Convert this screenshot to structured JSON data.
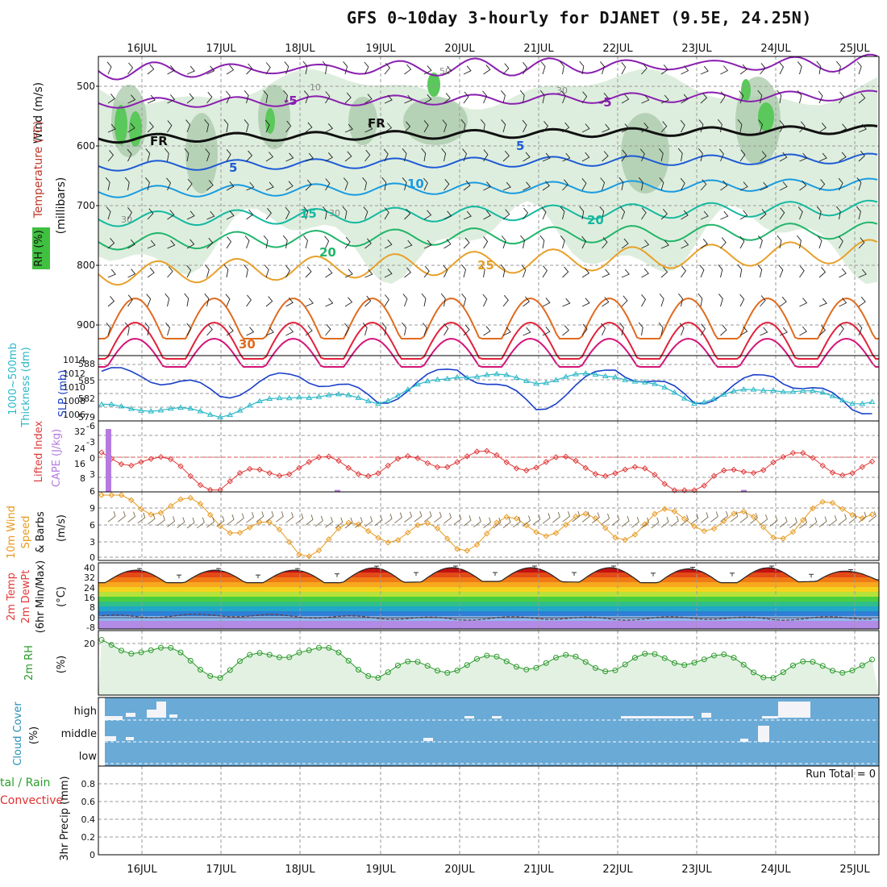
{
  "title": "GFS 0~10day 3-hourly for DJANET (9.5E, 24.25N)",
  "dates": [
    "16JUL",
    "17JUL",
    "18JUL",
    "19JUL",
    "20JUL",
    "21JUL",
    "22JUL",
    "23JUL",
    "24JUL",
    "25JUL"
  ],
  "run_total": "Run Total = 0",
  "colors": {
    "purple": "#8a1fb0",
    "fr": "#111111",
    "blue": "#1e5bd6",
    "lightblue": "#1a9be0",
    "teal": "#14b9a0",
    "green": "#22b56a",
    "orange": "#e7a02a",
    "darkorange": "#e06b1f",
    "red": "#e0223a",
    "magenta": "#d4157a",
    "rhfill": "#d6ead6",
    "rhdark": "#a8c8a8",
    "cloud": "#6aaad6",
    "slp": "#1a3fc9",
    "thick": "#2ab8c8",
    "li": "#e03a3a",
    "cape": "#b57be0",
    "wind": "#e79a20",
    "rh2m": "#2a9a2a"
  },
  "panels": {
    "upper": {
      "labels": [
        "Wind (m/s)",
        "Temperature (°C)",
        "RH (%)",
        "(millibars)"
      ],
      "yticks": [
        "500",
        "600",
        "700",
        "800",
        "900"
      ],
      "contour_labels": [
        "-5",
        "-5",
        "FR",
        "FR",
        "5",
        "5",
        "10",
        "15",
        "20",
        "20",
        "25",
        "30",
        "10",
        "30",
        "50",
        "30",
        "30"
      ]
    },
    "slp": {
      "labels": [
        "1000~500mb",
        "Thickness (dm)",
        "SLP (mb)"
      ],
      "left_ticks": [
        "588",
        "585",
        "582",
        "579"
      ],
      "right_ticks": [
        "1014",
        "1012",
        "1010",
        "1008",
        "1006"
      ]
    },
    "cape": {
      "labels": [
        "Lifted Index",
        "CAPE (J/kg)"
      ],
      "left_ticks": [
        "-6",
        "-3",
        "0",
        "3",
        "6"
      ],
      "right_ticks": [
        "32",
        "24",
        "16",
        "8"
      ]
    },
    "wind": {
      "labels": [
        "10m Wind",
        "Speed",
        "& Barbs",
        "(m/s)"
      ],
      "ticks": [
        "9",
        "6",
        "3",
        "0"
      ]
    },
    "temp": {
      "labels": [
        "2m Temp",
        "2m DewPt",
        "(6hr Min/Max)",
        "(°C)"
      ],
      "ticks": [
        "40",
        "32",
        "24",
        "16",
        "8",
        "0",
        "-8"
      ]
    },
    "rh": {
      "labels": [
        "2m RH",
        "(%)"
      ],
      "ticks": [
        "20"
      ]
    },
    "cloud": {
      "labels": [
        "Cloud Cover",
        "(%)"
      ],
      "levels": [
        "high",
        "middle",
        "low"
      ]
    },
    "precip": {
      "labels": [
        "tal / Rain",
        "Convective",
        "3hr Precip (mm)"
      ],
      "ticks": [
        "0.8",
        "0.6",
        "0.4",
        "0.2",
        "0"
      ]
    }
  },
  "chart_data": [
    {
      "type": "line",
      "title": "1000~500mb Thickness (dm) / SLP (mb)",
      "x": [
        "16JUL",
        "17JUL",
        "18JUL",
        "19JUL",
        "20JUL",
        "21JUL",
        "22JUL",
        "23JUL",
        "24JUL",
        "25JUL"
      ],
      "series": [
        {
          "name": "SLP (mb)",
          "values": [
            1012,
            1009,
            1012,
            1008,
            1013,
            1007,
            1013,
            1008,
            1012,
            1007
          ]
        },
        {
          "name": "1000~500mb Thickness (dm)",
          "values": [
            581,
            580,
            583,
            582,
            586,
            585,
            586,
            582,
            584,
            582
          ]
        }
      ],
      "ylim_left": [
        579,
        588
      ],
      "ylim_right": [
        1005,
        1014
      ]
    },
    {
      "type": "line",
      "title": "Lifted Index / CAPE (J/kg)",
      "x": [
        "16JUL",
        "17JUL",
        "18JUL",
        "19JUL",
        "20JUL",
        "21JUL",
        "22JUL",
        "23JUL",
        "24JUL",
        "25JUL"
      ],
      "series": [
        {
          "name": "Lifted Index",
          "values": [
            0,
            5,
            1,
            2,
            0,
            1,
            2,
            6,
            0,
            2
          ]
        },
        {
          "name": "CAPE (J/kg)",
          "values": [
            32,
            0,
            0,
            1,
            0,
            0,
            0,
            0,
            1,
            0
          ]
        }
      ],
      "ylim_left": [
        6,
        -6
      ],
      "ylim_right": [
        0,
        32
      ]
    },
    {
      "type": "line",
      "title": "10m Wind Speed (m/s)",
      "x": [
        "16JUL",
        "17JUL",
        "18JUL",
        "19JUL",
        "20JUL",
        "21JUL",
        "22JUL",
        "23JUL",
        "24JUL",
        "25JUL"
      ],
      "values": [
        10,
        7,
        2,
        5,
        3,
        6,
        5,
        7,
        5,
        9
      ],
      "ylim": [
        0,
        11
      ]
    },
    {
      "type": "area",
      "title": "2m Temp (°C)",
      "x": [
        "16JUL",
        "17JUL",
        "18JUL",
        "19JUL",
        "20JUL",
        "21JUL",
        "22JUL",
        "23JUL",
        "24JUL",
        "25JUL"
      ],
      "series": [
        {
          "name": "2m Temp max",
          "values": [
            38,
            38,
            38,
            40,
            40,
            40,
            40,
            39,
            40,
            37
          ]
        },
        {
          "name": "2m Temp min",
          "values": [
            28,
            28,
            28,
            28,
            29,
            29,
            28,
            28,
            28,
            30
          ]
        },
        {
          "name": "2m DewPt",
          "values": [
            1,
            2,
            1,
            0,
            -1,
            0,
            -1,
            0,
            -1,
            0
          ]
        }
      ],
      "ylim": [
        -10,
        42
      ]
    },
    {
      "type": "line",
      "title": "2m RH (%)",
      "x": [
        "16JUL",
        "17JUL",
        "18JUL",
        "19JUL",
        "20JUL",
        "21JUL",
        "22JUL",
        "23JUL",
        "24JUL",
        "25JUL"
      ],
      "values": [
        19,
        9,
        19,
        9,
        12,
        13,
        12,
        15,
        9,
        12
      ],
      "ylim": [
        0,
        25
      ]
    },
    {
      "type": "line",
      "title": "3hr Precip (mm)",
      "x": [
        "16JUL",
        "17JUL",
        "18JUL",
        "19JUL",
        "20JUL",
        "21JUL",
        "22JUL",
        "23JUL",
        "24JUL",
        "25JUL"
      ],
      "values": [
        0,
        0,
        0,
        0,
        0,
        0,
        0,
        0,
        0,
        0
      ],
      "ylim": [
        0,
        1
      ]
    }
  ]
}
